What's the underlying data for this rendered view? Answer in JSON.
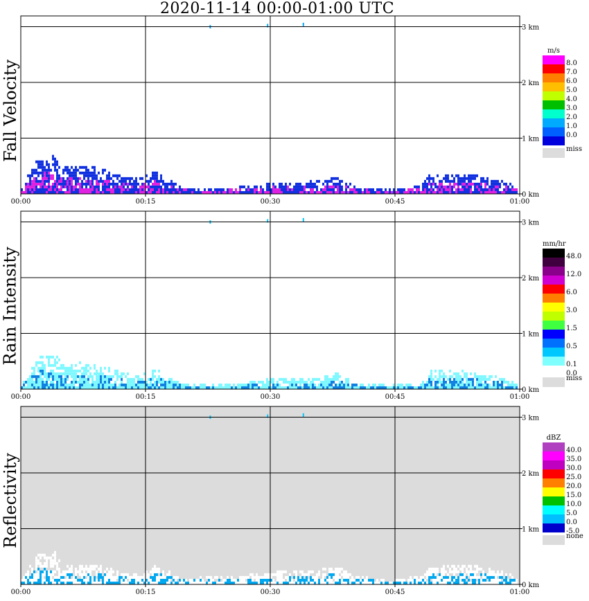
{
  "title": "2020-11-14   00:00-01:00 UTC",
  "time_labels": [
    "00:00",
    "00:15",
    "00:30",
    "00:45",
    "01:00"
  ],
  "height_labels": [
    "0 km",
    "1 km",
    "2 km",
    "3 km"
  ],
  "chart_data": [
    {
      "type": "heatmap",
      "title": "Fall Velocity",
      "xlabel": "",
      "ylabel": "Fall Velocity",
      "x_ticks": [
        "00:00",
        "00:15",
        "00:30",
        "00:45",
        "01:00"
      ],
      "y_ticks": [
        "0 km",
        "1 km",
        "2 km",
        "3 km"
      ],
      "xlim": [
        "00:00",
        "01:00"
      ],
      "ylim_km": [
        0,
        3.1
      ],
      "background": "#ffffff",
      "legend": {
        "unit": "m/s",
        "placement": "right",
        "items": [
          {
            "label": "8.0",
            "color": "#ff00ff"
          },
          {
            "label": "7.0",
            "color": "#ff0000"
          },
          {
            "label": "6.0",
            "color": "#ff7f00"
          },
          {
            "label": "5.0",
            "color": "#ffbf00"
          },
          {
            "label": "4.0",
            "color": "#c0ff00"
          },
          {
            "label": "3.0",
            "color": "#00bf00"
          },
          {
            "label": "2.0",
            "color": "#00ffcc"
          },
          {
            "label": "1.0",
            "color": "#00aaff"
          },
          {
            "label": "0.0",
            "color": "#0060ff"
          },
          {
            "label": "",
            "color": "#0000dd"
          }
        ],
        "miss_label": "miss",
        "miss_color": "#dcdcdc"
      },
      "echo_color": "#1030e0",
      "echo_accent": "#e020e0",
      "echo_envelope_km": [
        {
          "t": 0,
          "h": 0.12
        },
        {
          "t": 2,
          "h": 0.62
        },
        {
          "t": 4,
          "h": 0.68
        },
        {
          "t": 5,
          "h": 0.45
        },
        {
          "t": 7,
          "h": 0.5
        },
        {
          "t": 10,
          "h": 0.42
        },
        {
          "t": 12,
          "h": 0.3
        },
        {
          "t": 14,
          "h": 0.25
        },
        {
          "t": 16,
          "h": 0.38
        },
        {
          "t": 19,
          "h": 0.12
        },
        {
          "t": 21,
          "h": 0.05
        },
        {
          "t": 24,
          "h": 0.08
        },
        {
          "t": 27,
          "h": 0.12
        },
        {
          "t": 29,
          "h": 0.15
        },
        {
          "t": 30,
          "h": 0.2
        },
        {
          "t": 33,
          "h": 0.18
        },
        {
          "t": 36,
          "h": 0.22
        },
        {
          "t": 38,
          "h": 0.28
        },
        {
          "t": 40,
          "h": 0.12
        },
        {
          "t": 44,
          "h": 0.05
        },
        {
          "t": 48,
          "h": 0.12
        },
        {
          "t": 49,
          "h": 0.32
        },
        {
          "t": 52,
          "h": 0.35
        },
        {
          "t": 55,
          "h": 0.3
        },
        {
          "t": 58,
          "h": 0.2
        },
        {
          "t": 60,
          "h": 0.08
        }
      ]
    },
    {
      "type": "heatmap",
      "title": "Rain Intensity",
      "xlabel": "",
      "ylabel": "Rain Intensity",
      "x_ticks": [
        "00:00",
        "00:15",
        "00:30",
        "00:45",
        "01:00"
      ],
      "y_ticks": [
        "0 km",
        "1 km",
        "2 km",
        "3 km"
      ],
      "xlim": [
        "00:00",
        "01:00"
      ],
      "ylim_km": [
        0,
        3.1
      ],
      "background": "#ffffff",
      "legend": {
        "unit": "mm/hr",
        "placement": "right",
        "items": [
          {
            "label": "48.0",
            "color": "#000000"
          },
          {
            "label": "",
            "color": "#400040"
          },
          {
            "label": "12.0",
            "color": "#8b008b"
          },
          {
            "label": "",
            "color": "#d000d0"
          },
          {
            "label": "6.0",
            "color": "#ff0000"
          },
          {
            "label": "",
            "color": "#ff8000"
          },
          {
            "label": "3.0",
            "color": "#ffff00"
          },
          {
            "label": "",
            "color": "#bfff00"
          },
          {
            "label": "1.5",
            "color": "#40ff40"
          },
          {
            "label": "",
            "color": "#0000ff"
          },
          {
            "label": "0.5",
            "color": "#0070ff"
          },
          {
            "label": "",
            "color": "#00c8ff"
          },
          {
            "label": "0.1",
            "color": "#80ffff"
          },
          {
            "label": "0.0",
            "color": "#ffffff"
          }
        ],
        "miss_label": "miss",
        "miss_color": "#dcdcdc"
      },
      "echo_color": "#7ff8ff",
      "echo_accent": "#1080e0",
      "echo_envelope_km": [
        {
          "t": 0,
          "h": 0.1
        },
        {
          "t": 2,
          "h": 0.55
        },
        {
          "t": 4,
          "h": 0.6
        },
        {
          "t": 5,
          "h": 0.4
        },
        {
          "t": 7,
          "h": 0.45
        },
        {
          "t": 10,
          "h": 0.38
        },
        {
          "t": 12,
          "h": 0.28
        },
        {
          "t": 14,
          "h": 0.22
        },
        {
          "t": 16,
          "h": 0.35
        },
        {
          "t": 19,
          "h": 0.1
        },
        {
          "t": 21,
          "h": 0.05
        },
        {
          "t": 24,
          "h": 0.06
        },
        {
          "t": 27,
          "h": 0.1
        },
        {
          "t": 29,
          "h": 0.14
        },
        {
          "t": 30,
          "h": 0.18
        },
        {
          "t": 33,
          "h": 0.16
        },
        {
          "t": 36,
          "h": 0.2
        },
        {
          "t": 38,
          "h": 0.26
        },
        {
          "t": 40,
          "h": 0.1
        },
        {
          "t": 44,
          "h": 0.05
        },
        {
          "t": 48,
          "h": 0.1
        },
        {
          "t": 49,
          "h": 0.3
        },
        {
          "t": 52,
          "h": 0.32
        },
        {
          "t": 55,
          "h": 0.28
        },
        {
          "t": 58,
          "h": 0.18
        },
        {
          "t": 60,
          "h": 0.06
        }
      ]
    },
    {
      "type": "heatmap",
      "title": "Reflectivity",
      "xlabel": "",
      "ylabel": "Reflectivity",
      "x_ticks": [
        "00:00",
        "00:15",
        "00:30",
        "00:45",
        "01:00"
      ],
      "y_ticks": [
        "0 km",
        "1 km",
        "2 km",
        "3 km"
      ],
      "xlim": [
        "00:00",
        "01:00"
      ],
      "ylim_km": [
        0,
        3.1
      ],
      "background": "#dcdcdc",
      "legend": {
        "unit": "dBZ",
        "placement": "right",
        "items": [
          {
            "label": "40.0",
            "color": "#b040c0"
          },
          {
            "label": "35.0",
            "color": "#ff00ff"
          },
          {
            "label": "30.0",
            "color": "#c000c0"
          },
          {
            "label": "25.0",
            "color": "#ff0000"
          },
          {
            "label": "20.0",
            "color": "#ff8000"
          },
          {
            "label": "15.0",
            "color": "#ffff00"
          },
          {
            "label": "10.0",
            "color": "#00c000"
          },
          {
            "label": "5.0",
            "color": "#00ffff"
          },
          {
            "label": "0.0",
            "color": "#00bfff"
          },
          {
            "label": "-5.0",
            "color": "#0000cd"
          }
        ],
        "miss_label": "none",
        "miss_color": "#dcdcdc"
      },
      "echo_color": "#ffffff",
      "echo_accent": "#00a8f0",
      "echo_envelope_km": [
        {
          "t": 0,
          "h": 0.1
        },
        {
          "t": 2,
          "h": 0.5
        },
        {
          "t": 4,
          "h": 0.55
        },
        {
          "t": 5,
          "h": 0.3
        },
        {
          "t": 7,
          "h": 0.35
        },
        {
          "t": 10,
          "h": 0.3
        },
        {
          "t": 12,
          "h": 0.2
        },
        {
          "t": 14,
          "h": 0.15
        },
        {
          "t": 16,
          "h": 0.35
        },
        {
          "t": 19,
          "h": 0.1
        },
        {
          "t": 21,
          "h": 0.1
        },
        {
          "t": 24,
          "h": 0.12
        },
        {
          "t": 27,
          "h": 0.15
        },
        {
          "t": 29,
          "h": 0.18
        },
        {
          "t": 30,
          "h": 0.2
        },
        {
          "t": 33,
          "h": 0.22
        },
        {
          "t": 36,
          "h": 0.25
        },
        {
          "t": 38,
          "h": 0.3
        },
        {
          "t": 40,
          "h": 0.15
        },
        {
          "t": 44,
          "h": 0.05
        },
        {
          "t": 48,
          "h": 0.15
        },
        {
          "t": 49,
          "h": 0.3
        },
        {
          "t": 52,
          "h": 0.35
        },
        {
          "t": 55,
          "h": 0.3
        },
        {
          "t": 58,
          "h": 0.2
        },
        {
          "t": 60,
          "h": 0.08
        }
      ]
    }
  ]
}
